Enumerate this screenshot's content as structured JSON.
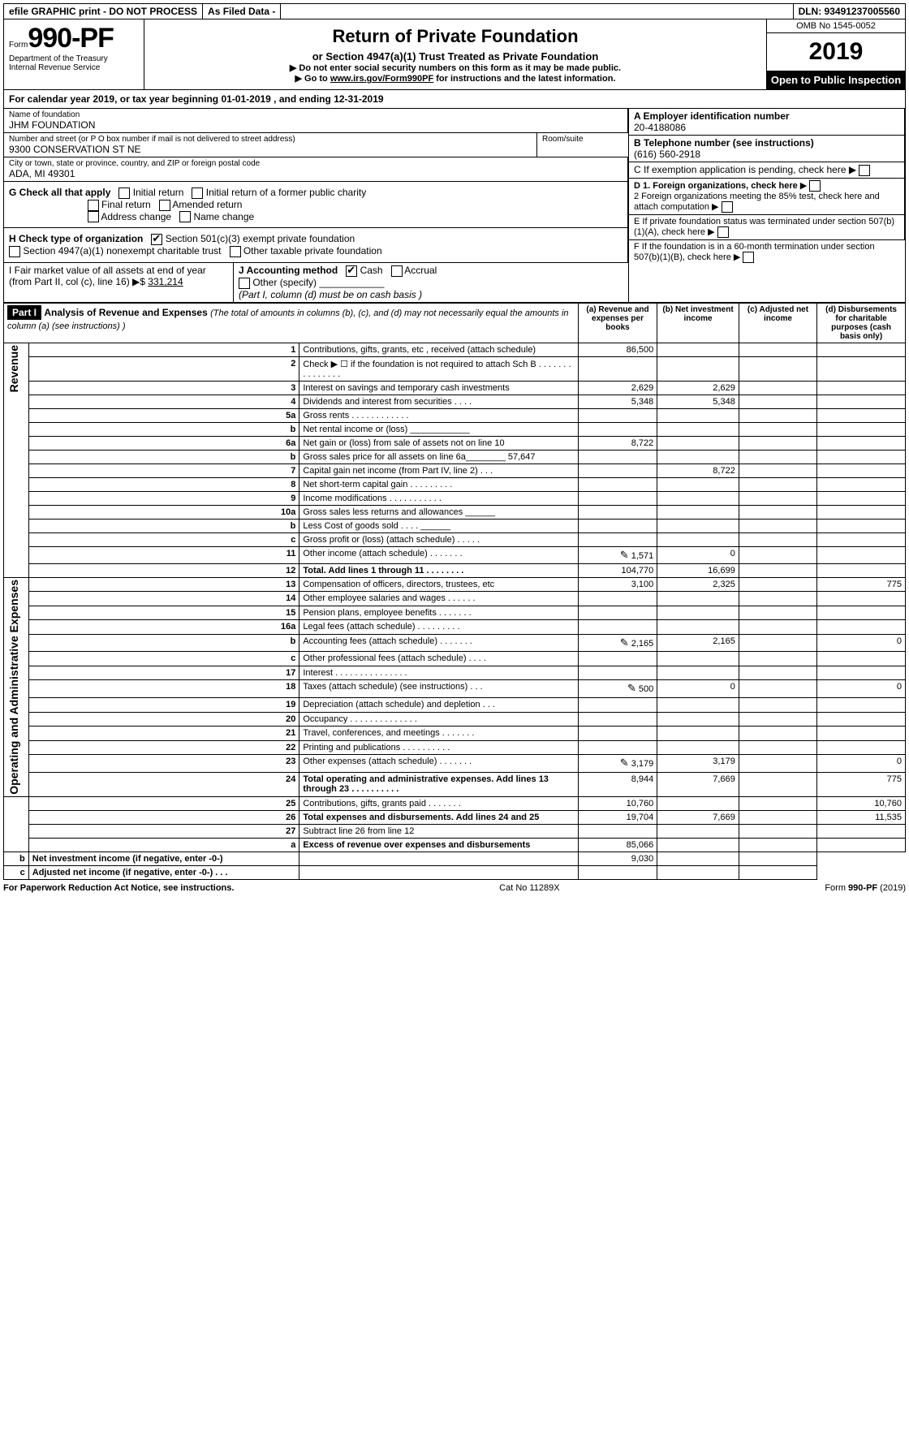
{
  "topbar": {
    "efile": "efile GRAPHIC print - DO NOT PROCESS",
    "asfiled": "As Filed Data -",
    "dln": "DLN: 93491237005560"
  },
  "header": {
    "form_prefix": "Form",
    "form_number": "990-PF",
    "dept": "Department of the Treasury",
    "irs": "Internal Revenue Service",
    "title": "Return of Private Foundation",
    "subtitle": "or Section 4947(a)(1) Trust Treated as Private Foundation",
    "note1": "▶ Do not enter social security numbers on this form as it may be made public.",
    "note2_prefix": "▶ Go to ",
    "note2_link": "www.irs.gov/Form990PF",
    "note2_suffix": " for instructions and the latest information.",
    "omb": "OMB No 1545-0052",
    "year": "2019",
    "open": "Open to Public Inspection"
  },
  "calendar": {
    "text_a": "For calendar year 2019, or tax year beginning ",
    "begin": "01-01-2019",
    "text_b": " , and ending ",
    "end": "12-31-2019"
  },
  "entity": {
    "name_label": "Name of foundation",
    "name": "JHM FOUNDATION",
    "addr_label": "Number and street (or P O  box number if mail is not delivered to street address)",
    "addr": "9300 CONSERVATION ST NE",
    "room_label": "Room/suite",
    "city_label": "City or town, state or province, country, and ZIP or foreign postal code",
    "city": "ADA, MI  49301",
    "ein_label": "A Employer identification number",
    "ein": "20-4188086",
    "tel_label": "B Telephone number (see instructions)",
    "tel": "(616) 560-2918",
    "c_label": "C If exemption application is pending, check here",
    "d1": "D 1. Foreign organizations, check here",
    "d2": "2 Foreign organizations meeting the 85% test, check here and attach computation",
    "e": "E  If private foundation status was terminated under section 507(b)(1)(A), check here",
    "f": "F  If the foundation is in a 60-month termination under section 507(b)(1)(B), check here"
  },
  "checks": {
    "g_label": "G Check all that apply",
    "initial": "Initial return",
    "initial_former": "Initial return of a former public charity",
    "final": "Final return",
    "amended": "Amended return",
    "addr_change": "Address change",
    "name_change": "Name change",
    "h_label": "H Check type of organization",
    "h_501c3": "Section 501(c)(3) exempt private foundation",
    "h_4947": "Section 4947(a)(1) nonexempt charitable trust",
    "h_other": "Other taxable private foundation",
    "i_label": "I Fair market value of all assets at end of year (from Part II, col  (c), line 16) ▶$ ",
    "i_value": "331,214",
    "j_label": "J Accounting method",
    "j_cash": "Cash",
    "j_accrual": "Accrual",
    "j_other": "Other (specify)",
    "j_note": "(Part I, column (d) must be on cash basis )"
  },
  "part1": {
    "label": "Part I",
    "title": "Analysis of Revenue and Expenses",
    "title_note": " (The total of amounts in columns (b), (c), and (d) may not necessarily equal the amounts in column (a) (see instructions) )",
    "col_a": "(a) Revenue and expenses per books",
    "col_b": "(b) Net investment income",
    "col_c": "(c) Adjusted net income",
    "col_d": "(d) Disbursements for charitable purposes (cash basis only)"
  },
  "sections": {
    "revenue": "Revenue",
    "opex": "Operating and Administrative Expenses"
  },
  "rows": [
    {
      "n": "1",
      "d": "Contributions, gifts, grants, etc , received (attach schedule)",
      "a": "86,500",
      "b": "",
      "c": "",
      "dd": ""
    },
    {
      "n": "2",
      "d": "Check ▶ ☐ if the foundation is not required to attach Sch B   . . . . . . . . . . . . . . .",
      "a": "",
      "b": "",
      "c": "",
      "dd": ""
    },
    {
      "n": "3",
      "d": "Interest on savings and temporary cash investments",
      "a": "2,629",
      "b": "2,629",
      "c": "",
      "dd": ""
    },
    {
      "n": "4",
      "d": "Dividends and interest from securities   . . . .",
      "a": "5,348",
      "b": "5,348",
      "c": "",
      "dd": ""
    },
    {
      "n": "5a",
      "d": "Gross rents   . . . . . . . . . . . .",
      "a": "",
      "b": "",
      "c": "",
      "dd": ""
    },
    {
      "n": "b",
      "d": "Net rental income or (loss)  ____________",
      "a": "",
      "b": "",
      "c": "",
      "dd": ""
    },
    {
      "n": "6a",
      "d": "Net gain or (loss) from sale of assets not on line 10",
      "a": "8,722",
      "b": "",
      "c": "",
      "dd": ""
    },
    {
      "n": "b",
      "d": "Gross sales price for all assets on line 6a________   57,647",
      "a": "",
      "b": "",
      "c": "",
      "dd": ""
    },
    {
      "n": "7",
      "d": "Capital gain net income (from Part IV, line 2)  . . .",
      "a": "",
      "b": "8,722",
      "c": "",
      "dd": ""
    },
    {
      "n": "8",
      "d": "Net short-term capital gain  . . . . . . . . .",
      "a": "",
      "b": "",
      "c": "",
      "dd": ""
    },
    {
      "n": "9",
      "d": "Income modifications  . . . . . . . . . . .",
      "a": "",
      "b": "",
      "c": "",
      "dd": ""
    },
    {
      "n": "10a",
      "d": "Gross sales less returns and allowances  ______",
      "a": "",
      "b": "",
      "c": "",
      "dd": ""
    },
    {
      "n": "b",
      "d": "Less  Cost of goods sold   . . . .  ______",
      "a": "",
      "b": "",
      "c": "",
      "dd": ""
    },
    {
      "n": "c",
      "d": "Gross profit or (loss) (attach schedule)   . . . . .",
      "a": "",
      "b": "",
      "c": "",
      "dd": ""
    },
    {
      "n": "11",
      "d": "Other income (attach schedule)   . . . . . . .",
      "a": "1,571",
      "b": "0",
      "c": "",
      "dd": "",
      "icon": true
    },
    {
      "n": "12",
      "d": "Total. Add lines 1 through 11   . . . . . . . .",
      "a": "104,770",
      "b": "16,699",
      "c": "",
      "dd": "",
      "bold": true
    },
    {
      "n": "13",
      "d": "Compensation of officers, directors, trustees, etc",
      "a": "3,100",
      "b": "2,325",
      "c": "",
      "dd": "775"
    },
    {
      "n": "14",
      "d": "Other employee salaries and wages   . . . . . .",
      "a": "",
      "b": "",
      "c": "",
      "dd": ""
    },
    {
      "n": "15",
      "d": "Pension plans, employee benefits  . . . . . . .",
      "a": "",
      "b": "",
      "c": "",
      "dd": ""
    },
    {
      "n": "16a",
      "d": "Legal fees (attach schedule) . . . . . . . . .",
      "a": "",
      "b": "",
      "c": "",
      "dd": ""
    },
    {
      "n": "b",
      "d": "Accounting fees (attach schedule) . . . . . . .",
      "a": "2,165",
      "b": "2,165",
      "c": "",
      "dd": "0",
      "icon": true
    },
    {
      "n": "c",
      "d": "Other professional fees (attach schedule)   . . . .",
      "a": "",
      "b": "",
      "c": "",
      "dd": ""
    },
    {
      "n": "17",
      "d": "Interest  . . . . . . . . . . . . . . .",
      "a": "",
      "b": "",
      "c": "",
      "dd": ""
    },
    {
      "n": "18",
      "d": "Taxes (attach schedule) (see instructions)   . . .",
      "a": "500",
      "b": "0",
      "c": "",
      "dd": "0",
      "icon": true
    },
    {
      "n": "19",
      "d": "Depreciation (attach schedule) and depletion   . . .",
      "a": "",
      "b": "",
      "c": "",
      "dd": ""
    },
    {
      "n": "20",
      "d": "Occupancy  . . . . . . . . . . . . . .",
      "a": "",
      "b": "",
      "c": "",
      "dd": ""
    },
    {
      "n": "21",
      "d": "Travel, conferences, and meetings . . . . . . .",
      "a": "",
      "b": "",
      "c": "",
      "dd": ""
    },
    {
      "n": "22",
      "d": "Printing and publications . . . . . . . . . .",
      "a": "",
      "b": "",
      "c": "",
      "dd": ""
    },
    {
      "n": "23",
      "d": "Other expenses (attach schedule) . . . . . . .",
      "a": "3,179",
      "b": "3,179",
      "c": "",
      "dd": "0",
      "icon": true
    },
    {
      "n": "24",
      "d": "Total operating and administrative expenses. Add lines 13 through 23  . . . . . . . . . .",
      "a": "8,944",
      "b": "7,669",
      "c": "",
      "dd": "775",
      "bold": true
    },
    {
      "n": "25",
      "d": "Contributions, gifts, grants paid   . . . . . . .",
      "a": "10,760",
      "b": "",
      "c": "",
      "dd": "10,760"
    },
    {
      "n": "26",
      "d": "Total expenses and disbursements. Add lines 24 and 25",
      "a": "19,704",
      "b": "7,669",
      "c": "",
      "dd": "11,535",
      "bold": true
    },
    {
      "n": "27",
      "d": "Subtract line 26 from line 12",
      "a": "",
      "b": "",
      "c": "",
      "dd": ""
    },
    {
      "n": "a",
      "d": "Excess of revenue over expenses and disbursements",
      "a": "85,066",
      "b": "",
      "c": "",
      "dd": "",
      "bold": true
    },
    {
      "n": "b",
      "d": "Net investment income (if negative, enter -0-)",
      "a": "",
      "b": "9,030",
      "c": "",
      "dd": "",
      "bold": true
    },
    {
      "n": "c",
      "d": "Adjusted net income (if negative, enter -0-)  . . .",
      "a": "",
      "b": "",
      "c": "",
      "dd": "",
      "bold": true
    }
  ],
  "footer": {
    "left": "For Paperwork Reduction Act Notice, see instructions.",
    "mid": "Cat No  11289X",
    "right": "Form 990-PF (2019)"
  }
}
